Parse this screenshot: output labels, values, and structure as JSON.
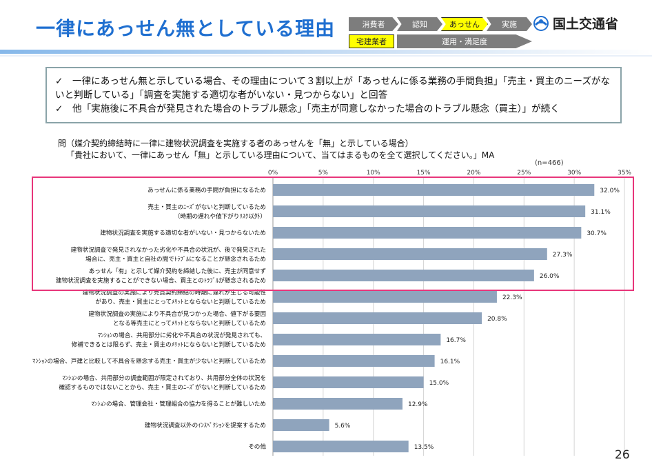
{
  "header": {
    "title": "一律にあっせん無としている理由",
    "flow": {
      "consumer": "消費者",
      "cognition": "認知",
      "mediation": "あっせん",
      "implementation": "実施",
      "broker": "宅建業者",
      "operation": "運用・満足度"
    },
    "logo_text": "国土交通省"
  },
  "summary": [
    "✓　一律にあっせん無と示している場合、その理由について３割以上が「あっせんに係る業務の手間負担」「売主・買主のニーズがないと判断している」「調査を実施する適切な者がいない・見つからない」と回答",
    "✓　他「実施後に不具合が発見された場合のトラブル懸念」「売主が同意しなかった場合のトラブル懸念（買主）」が続く"
  ],
  "question": [
    "問（媒介契約締結時に一律に建物状況調査を実施する者のあっせんを「無」と示している場合）",
    "「貴社において、一律にあっせん「無」と示している理由について、当てはまるものを全て選択してください。」MA"
  ],
  "n_label": "(n=466)",
  "page_number": "26",
  "colors": {
    "bar": "#8fa4bd",
    "title": "#1f6fd0",
    "highlight_box": "#e8357a",
    "flow_active": "#ffff00"
  },
  "chart_data": {
    "type": "bar",
    "orientation": "horizontal",
    "xlim": [
      0,
      35
    ],
    "ticks": [
      "0%",
      "5%",
      "10%",
      "15%",
      "20%",
      "25%",
      "30%",
      "35%"
    ],
    "grid": true,
    "categories": [
      [
        "あっせんに係る業務の手間が負担になるため"
      ],
      [
        "売主・買主のﾆｰｽﾞがないと判断しているため",
        "（時期の遅れや値下がりﾘｽｸ以外）"
      ],
      [
        "建物状況調査を実施する適切な者がいない・見つからないため"
      ],
      [
        "建物状況調査で発見されなかった劣化や不具合の状況が、後で発見された",
        "場合に、売主・買主と自社の間でﾄﾗﾌﾞﾙになることが懸念されるため"
      ],
      [
        "あっせん「有」と示して媒介契約を締結した後に、売主が同意せず",
        "建物状況調査を実施することができない場合、買主とのﾄﾗﾌﾞﾙが懸念されるため"
      ],
      [
        "建物状況調査の実施により売買契約締結の時期に遅れが生じる可能性",
        "があり、売主・買主にとってﾒﾘｯﾄとならないと判断しているため"
      ],
      [
        "建物状況調査の実施により不具合が見つかった場合、値下がる要因",
        "となる等売主にとってﾒﾘｯﾄとならないと判断しているため"
      ],
      [
        "ﾏﾝｼｮﾝの場合、共用部分に劣化や不具合の状況が発見されても、",
        "修補できるとは限らず、売主・買主のﾒﾘｯﾄにならないと判断しているため"
      ],
      [
        "ﾏﾝｼｮﾝの場合、戸建と比較して不具合を懸念する売主・買主が少ないと判断しているため"
      ],
      [
        "ﾏﾝｼｮﾝの場合、共用部分の調査範囲が限定されており、共用部分全体の状況を",
        "確認するものではないことから、売主・買主のﾆｰｽﾞがないと判断しているため"
      ],
      [
        "ﾏﾝｼｮﾝの場合、管理会社・管理組合の協力を得ることが難しいため"
      ],
      [
        "建物状況調査以外のｲﾝｽﾍﾟｸｼｮﾝを提案するため"
      ],
      [
        "その他"
      ]
    ],
    "values": [
      32.0,
      31.1,
      30.7,
      27.3,
      26.0,
      22.3,
      20.8,
      16.7,
      16.1,
      15.0,
      12.9,
      5.6,
      13.5
    ],
    "value_labels": [
      "32.0%",
      "31.1%",
      "30.7%",
      "27.3%",
      "26.0%",
      "22.3%",
      "20.8%",
      "16.7%",
      "16.1%",
      "15.0%",
      "12.9%",
      "5.6%",
      "13.5%"
    ]
  }
}
